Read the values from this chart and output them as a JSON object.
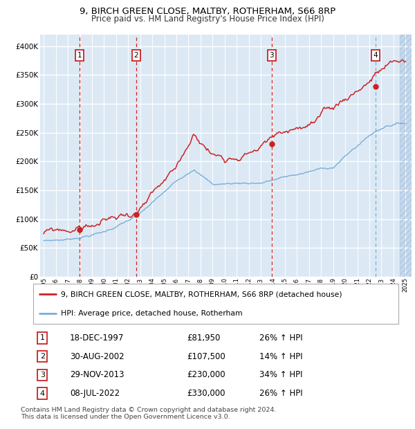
{
  "title1": "9, BIRCH GREEN CLOSE, MALTBY, ROTHERHAM, S66 8RP",
  "title2": "Price paid vs. HM Land Registry's House Price Index (HPI)",
  "ylim": [
    0,
    420000
  ],
  "yticks": [
    0,
    50000,
    100000,
    150000,
    200000,
    250000,
    300000,
    350000,
    400000
  ],
  "ytick_labels": [
    "£0",
    "£50K",
    "£100K",
    "£150K",
    "£200K",
    "£250K",
    "£300K",
    "£350K",
    "£400K"
  ],
  "xlim_start": 1994.7,
  "xlim_end": 2025.5,
  "xtick_years": [
    1995,
    1996,
    1997,
    1998,
    1999,
    2000,
    2001,
    2002,
    2003,
    2004,
    2005,
    2006,
    2007,
    2008,
    2009,
    2010,
    2011,
    2012,
    2013,
    2014,
    2015,
    2016,
    2017,
    2018,
    2019,
    2020,
    2021,
    2022,
    2023,
    2024,
    2025
  ],
  "sale_dates": [
    1997.96,
    2002.66,
    2013.91,
    2022.52
  ],
  "sale_prices": [
    81950,
    107500,
    230000,
    330000
  ],
  "sale_labels": [
    "1",
    "2",
    "3",
    "4"
  ],
  "hpi_color": "#7aadd4",
  "price_color": "#cc2222",
  "bg_color": "#dce9f5",
  "bg_hatch_color": "#c5d8ec",
  "grid_color": "#ffffff",
  "legend_label_price": "9, BIRCH GREEN CLOSE, MALTBY, ROTHERHAM, S66 8RP (detached house)",
  "legend_label_hpi": "HPI: Average price, detached house, Rotherham",
  "table_entries": [
    {
      "num": "1",
      "date": "18-DEC-1997",
      "price": "£81,950",
      "pct": "26% ↑ HPI"
    },
    {
      "num": "2",
      "date": "30-AUG-2002",
      "price": "£107,500",
      "pct": "14% ↑ HPI"
    },
    {
      "num": "3",
      "date": "29-NOV-2013",
      "price": "£230,000",
      "pct": "34% ↑ HPI"
    },
    {
      "num": "4",
      "date": "08-JUL-2022",
      "price": "£330,000",
      "pct": "26% ↑ HPI"
    }
  ],
  "footnote": "Contains HM Land Registry data © Crown copyright and database right 2024.\nThis data is licensed under the Open Government Licence v3.0."
}
